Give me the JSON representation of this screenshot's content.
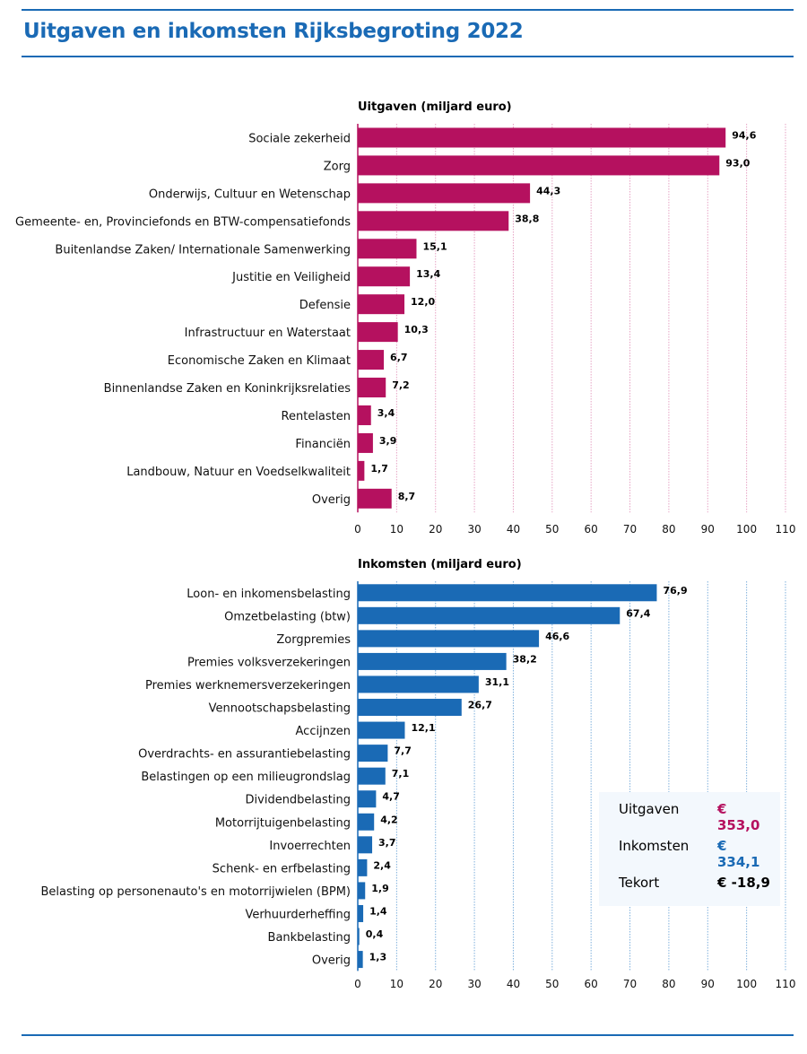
{
  "title": "Uitgaven en inkomsten Rijksbegroting 2022",
  "colors": {
    "uitgaven": "#b5115f",
    "inkomsten": "#1a6ab5",
    "title": "#1a6ab5",
    "summary_bg": "#f3f8fd"
  },
  "summary": {
    "rows": [
      {
        "label": "Uitgaven",
        "value": "€ 353,0",
        "color": "#b5115f"
      },
      {
        "label": "Inkomsten",
        "value": "€ 334,1",
        "color": "#1a6ab5"
      },
      {
        "label": "Tekort",
        "value": "€ -18,9",
        "color": "#000000"
      }
    ]
  },
  "chart_data": [
    {
      "type": "bar",
      "orientation": "horizontal",
      "title": "Uitgaven (miljard euro)",
      "xlabel": "",
      "ylabel": "",
      "xlim": [
        0,
        110
      ],
      "ticks": [
        0,
        10,
        20,
        30,
        40,
        50,
        60,
        70,
        80,
        90,
        100,
        110
      ],
      "grid": true,
      "categories": [
        "Sociale zekerheid",
        "Zorg",
        "Onderwijs, Cultuur en Wetenschap",
        "Gemeente- en, Provinciefonds en BTW-compensatiefonds",
        "Buitenlandse Zaken/ Internationale Samenwerking",
        "Justitie en Veiligheid",
        "Defensie",
        "Infrastructuur en Waterstaat",
        "Economische Zaken en Klimaat",
        "Binnenlandse Zaken en Koninkrijksrelaties",
        "Rentelasten",
        "Financiën",
        "Landbouw, Natuur en Voedselkwaliteit",
        "Overig"
      ],
      "values": [
        94.6,
        93.0,
        44.3,
        38.8,
        15.1,
        13.4,
        12.0,
        10.3,
        6.7,
        7.2,
        3.4,
        3.9,
        1.7,
        8.7
      ],
      "labels": [
        "94,6",
        "93,0",
        "44,3",
        "38,8",
        "15,1",
        "13,4",
        "12,0",
        "10,3",
        "6,7",
        "7,2",
        "3,4",
        "3,9",
        "1,7",
        "8,7"
      ],
      "color": "#b5115f"
    },
    {
      "type": "bar",
      "orientation": "horizontal",
      "title": "Inkomsten (miljard euro)",
      "xlabel": "",
      "ylabel": "",
      "xlim": [
        0,
        110
      ],
      "ticks": [
        0,
        10,
        20,
        30,
        40,
        50,
        60,
        70,
        80,
        90,
        100,
        110
      ],
      "grid": true,
      "categories": [
        "Loon- en inkomensbelasting",
        "Omzetbelasting (btw)",
        "Zorgpremies",
        "Premies volksverzekeringen",
        "Premies werknemersverzekeringen",
        "Vennootschapsbelasting",
        "Accijnzen",
        "Overdrachts- en assurantiebelasting",
        "Belastingen op een milieugrondslag",
        "Dividendbelasting",
        "Motorrijtuigenbelasting",
        "Invoerrechten",
        "Schenk- en erfbelasting",
        "Belasting op personenauto's en motorrijwielen (BPM)",
        "Verhuurderheffing",
        "Bankbelasting",
        "Overig"
      ],
      "values": [
        76.9,
        67.4,
        46.6,
        38.2,
        31.1,
        26.7,
        12.1,
        7.7,
        7.1,
        4.7,
        4.2,
        3.7,
        2.4,
        1.9,
        1.4,
        0.4,
        1.3
      ],
      "labels": [
        "76,9",
        "67,4",
        "46,6",
        "38,2",
        "31,1",
        "26,7",
        "12,1",
        "7,7",
        "7,1",
        "4,7",
        "4,2",
        "3,7",
        "2,4",
        "1,9",
        "1,4",
        "0,4",
        "1,3"
      ],
      "color": "#1a6ab5"
    }
  ]
}
